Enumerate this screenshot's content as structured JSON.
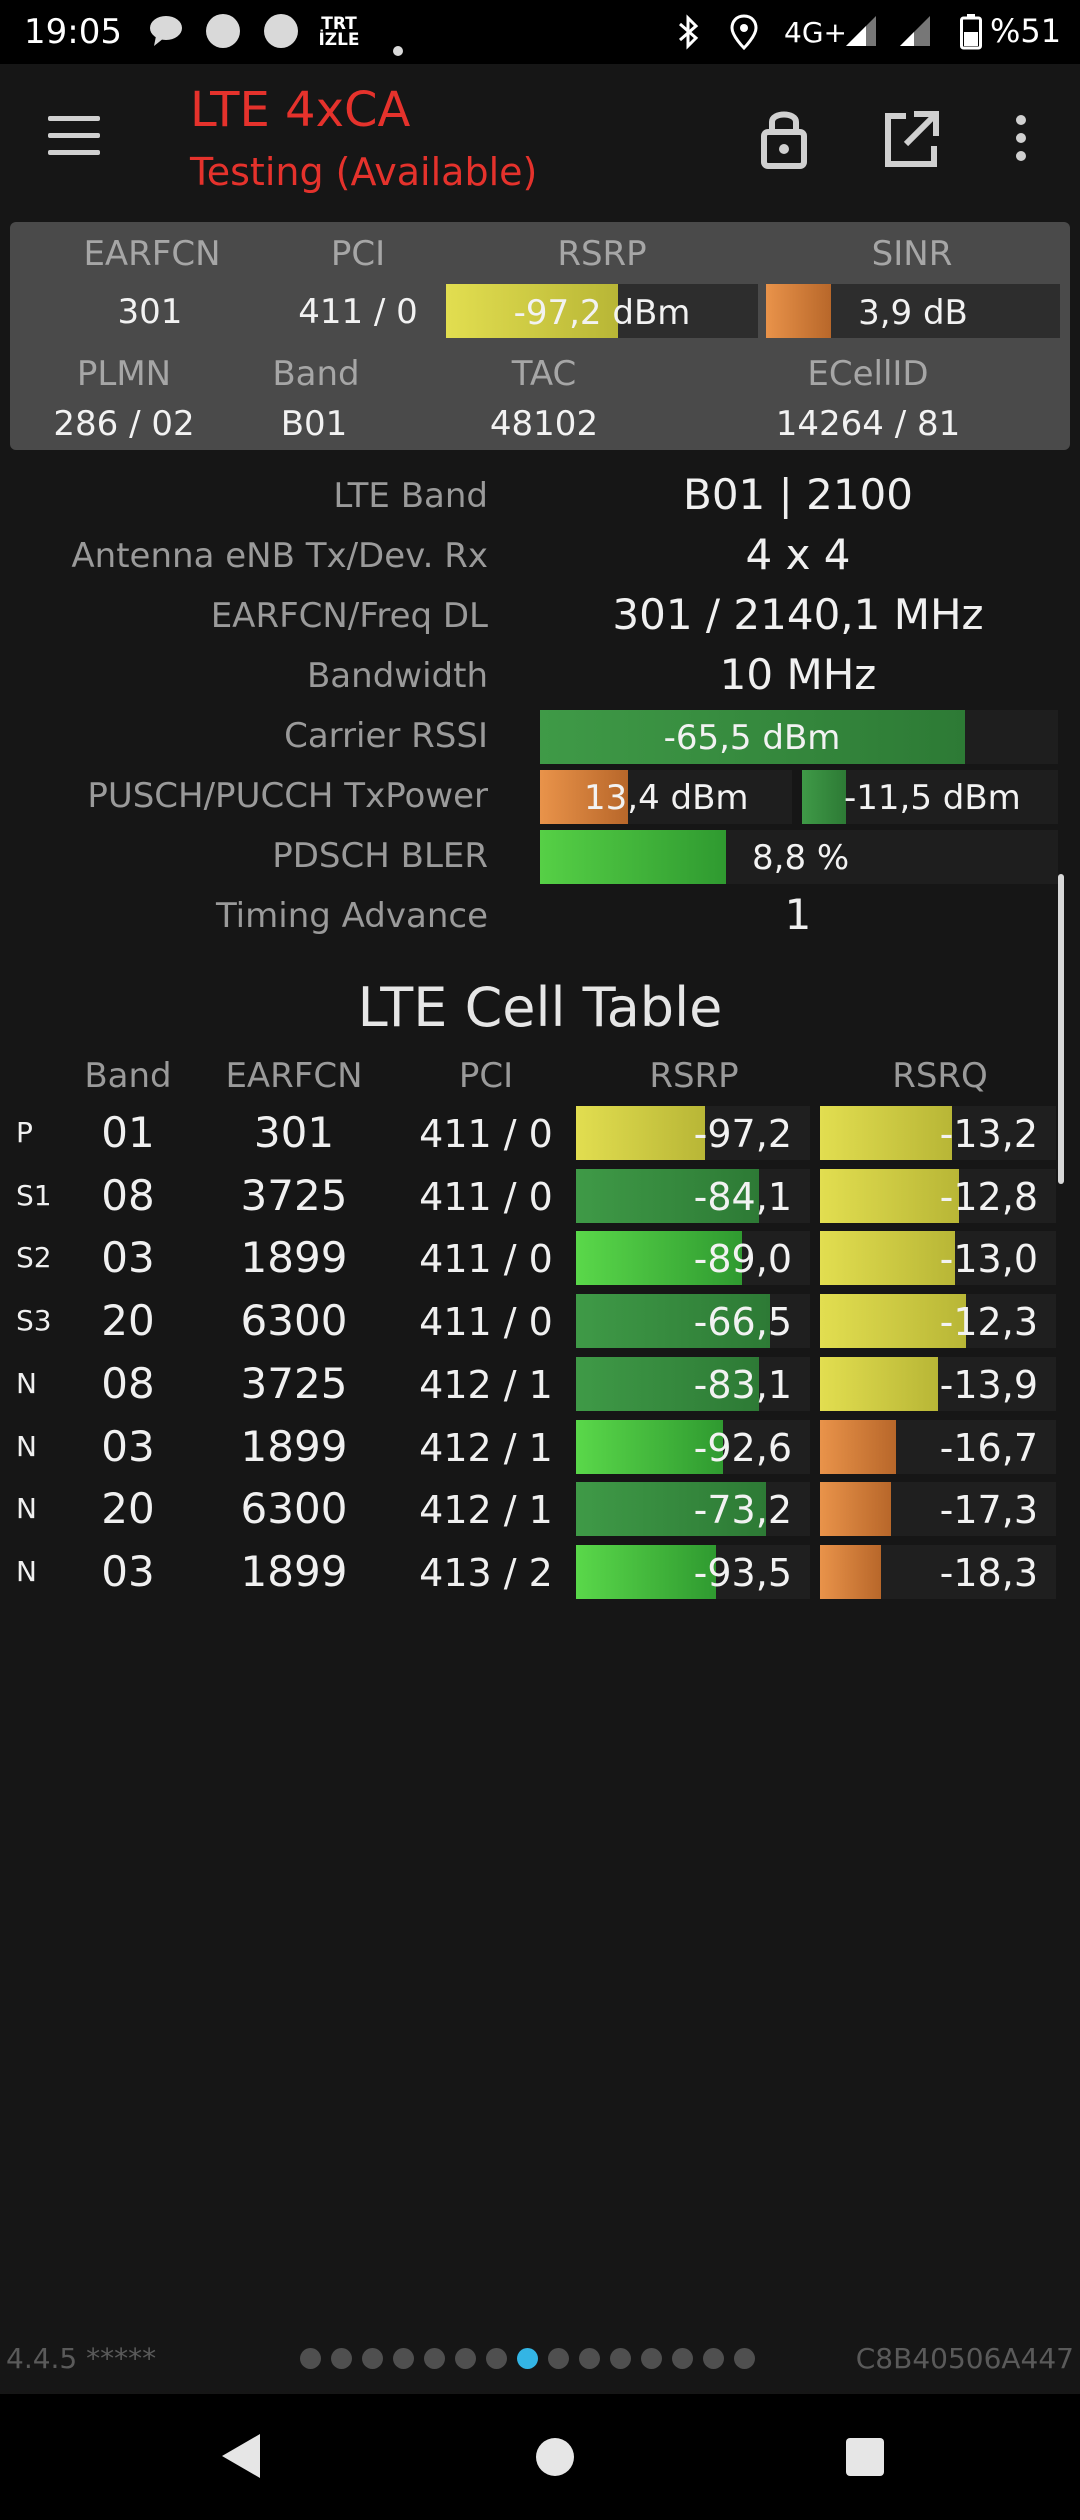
{
  "status_bar": {
    "time": "19:05",
    "network": "4G+",
    "battery": "%51",
    "notification_badge": "TRT İZLE",
    "icons": [
      "chat-icon",
      "circle-icon",
      "circle-icon",
      "trt-izle-icon",
      "dot-icon",
      "bluetooth-icon",
      "location-icon",
      "signal-icon",
      "signal-icon",
      "battery-icon"
    ]
  },
  "app_bar": {
    "title": "LTE 4xCA",
    "subtitle": "Testing (Available)",
    "icons": [
      "menu-icon",
      "lock-icon",
      "open-external-icon",
      "more-vert-icon"
    ],
    "accent_color": "#e5322c"
  },
  "summary": {
    "labels": {
      "earfcn": "EARFCN",
      "pci": "PCI",
      "rsrp": "RSRP",
      "sinr": "SINR",
      "plmn": "PLMN",
      "band": "Band",
      "tac": "TAC",
      "ecellid": "ECellID"
    },
    "values": {
      "earfcn": "301",
      "pci": "411 / 0",
      "rsrp": "-97,2 dBm",
      "sinr": "3,9 dB",
      "plmn": "286 / 02",
      "band": "B01",
      "tac": "48102",
      "ecellid": "14264 / 81"
    },
    "rsrp_level": 0.55,
    "sinr_level": 0.22
  },
  "details": {
    "lte_band_label": "LTE Band",
    "lte_band_value": "B01 | 2100",
    "antenna_label": "Antenna eNB Tx/Dev. Rx",
    "antenna_value": "4 x 4",
    "earfcn_freq_label": "EARFCN/Freq DL",
    "earfcn_freq_value": "301 / 2140,1 MHz",
    "bandwidth_label": "Bandwidth",
    "bandwidth_value": "10 MHz",
    "rssi_label": "Carrier RSSI",
    "rssi_value": "-65,5 dBm",
    "rssi_level": 0.82,
    "txpower_label": "PUSCH/PUCCH TxPower",
    "pusch_value": "13,4 dBm",
    "pusch_level": 0.35,
    "pucch_value": "-11,5 dBm",
    "pucch_level": 0.17,
    "bler_label": "PDSCH BLER",
    "bler_value": "8,8 %",
    "bler_level": 0.36,
    "timing_label": "Timing Advance",
    "timing_value": "1"
  },
  "cell_table": {
    "title": "LTE Cell Table",
    "headers": [
      "Band",
      "EARFCN",
      "PCI",
      "RSRP",
      "RSRQ"
    ],
    "rows": [
      {
        "type": "P",
        "band": "01",
        "earfcn": "301",
        "pci": "411 / 0",
        "rsrp": "-97,2",
        "rsrp_level": 0.55,
        "rsrq": "-13,2",
        "rsrq_level": 0.56
      },
      {
        "type": "S1",
        "band": "08",
        "earfcn": "3725",
        "pci": "411 / 0",
        "rsrp": "-84,1",
        "rsrp_level": 0.78,
        "rsrq": "-12,8",
        "rsrq_level": 0.59
      },
      {
        "type": "S2",
        "band": "03",
        "earfcn": "1899",
        "pci": "411 / 0",
        "rsrp": "-89,0",
        "rsrp_level": 0.71,
        "rsrq": "-13,0",
        "rsrq_level": 0.57
      },
      {
        "type": "S3",
        "band": "20",
        "earfcn": "6300",
        "pci": "411 / 0",
        "rsrp": "-66,5",
        "rsrp_level": 0.83,
        "rsrq": "-12,3",
        "rsrq_level": 0.62
      },
      {
        "type": "N",
        "band": "08",
        "earfcn": "3725",
        "pci": "412 / 1",
        "rsrp": "-83,1",
        "rsrp_level": 0.78,
        "rsrq": "-13,9",
        "rsrq_level": 0.5
      },
      {
        "type": "N",
        "band": "03",
        "earfcn": "1899",
        "pci": "412 / 1",
        "rsrp": "-92,6",
        "rsrp_level": 0.63,
        "rsrq": "-16,7",
        "rsrq_level": 0.32
      },
      {
        "type": "N",
        "band": "20",
        "earfcn": "6300",
        "pci": "412 / 1",
        "rsrp": "-73,2",
        "rsrp_level": 0.81,
        "rsrq": "-17,3",
        "rsrq_level": 0.3
      },
      {
        "type": "N",
        "band": "03",
        "earfcn": "1899",
        "pci": "413 / 2",
        "rsrp": "-93,5",
        "rsrp_level": 0.6,
        "rsrq": "-18,3",
        "rsrq_level": 0.26
      }
    ]
  },
  "footer": {
    "version": "4.4.5 *****",
    "build_id": "C8B40506A447",
    "page_count": 15,
    "active_page": 8
  },
  "colors": {
    "yellow": "#d8d64a",
    "dark_green": "#2f8a3a",
    "light_green": "#4ccc3e",
    "orange": "#e0843a"
  }
}
